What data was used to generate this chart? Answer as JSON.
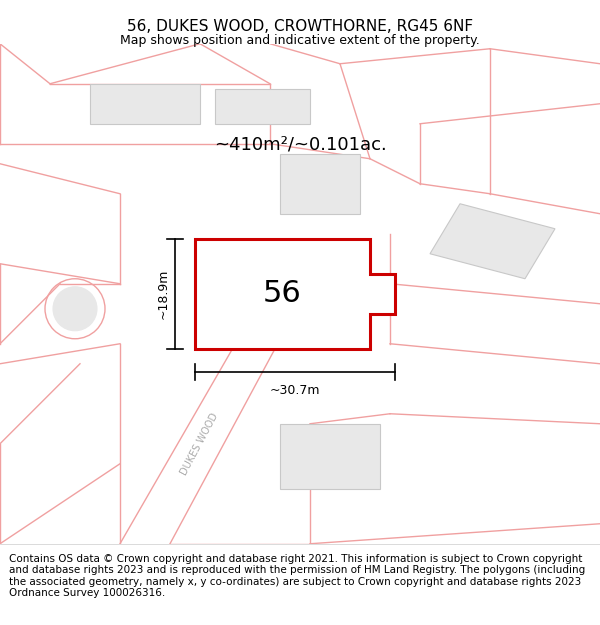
{
  "title": "56, DUKES WOOD, CROWTHORNE, RG45 6NF",
  "subtitle": "Map shows position and indicative extent of the property.",
  "area_text": "~410m²/~0.101ac.",
  "label_56": "56",
  "dim_width": "~30.7m",
  "dim_height": "~18.9m",
  "road_label": "DUKES WOOD",
  "footer": "Contains OS data © Crown copyright and database right 2021. This information is subject to Crown copyright and database rights 2023 and is reproduced with the permission of HM Land Registry. The polygons (including the associated geometry, namely x, y co-ordinates) are subject to Crown copyright and database rights 2023 Ordnance Survey 100026316.",
  "bg_color": "#ffffff",
  "map_bg": "#ffffff",
  "plot_color": "#cc0000",
  "road_line_color": "#f0a0a0",
  "building_color": "#e8e8e8",
  "building_edge": "#c8c8c8",
  "footer_fontsize": 7.5,
  "title_fontsize": 11,
  "subtitle_fontsize": 9
}
